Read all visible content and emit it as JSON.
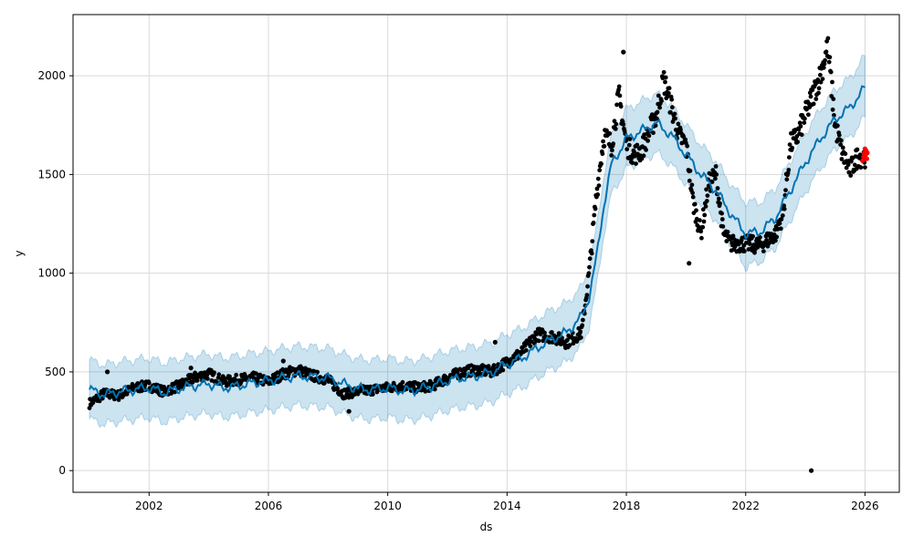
{
  "chart_data": {
    "type": "scatter",
    "title": "",
    "xlabel": "ds",
    "ylabel": "y",
    "xlim": [
      1999.45,
      2027.15
    ],
    "ylim": [
      -110,
      2310
    ],
    "grid": true,
    "x_ticks": [
      {
        "value": 2002,
        "label": "2002"
      },
      {
        "value": 2006,
        "label": "2006"
      },
      {
        "value": 2010,
        "label": "2010"
      },
      {
        "value": 2014,
        "label": "2014"
      },
      {
        "value": 2018,
        "label": "2018"
      },
      {
        "value": 2022,
        "label": "2022"
      },
      {
        "value": 2026,
        "label": "2026"
      }
    ],
    "y_ticks": [
      {
        "value": 0,
        "label": "0"
      },
      {
        "value": 500,
        "label": "500"
      },
      {
        "value": 1000,
        "label": "1000"
      },
      {
        "value": 1500,
        "label": "1500"
      },
      {
        "value": 2000,
        "label": "2000"
      }
    ],
    "colors": {
      "observed": "#000000",
      "forecast": "#0072b2",
      "interval_fill": "#0072b2",
      "holdout": "#ff0000",
      "grid": "#d9d9d9"
    },
    "forecast": {
      "x": [
        2000.0,
        2000.5,
        2001.0,
        2001.5,
        2002.0,
        2002.5,
        2003.0,
        2003.5,
        2004.0,
        2004.5,
        2005.0,
        2005.5,
        2006.0,
        2006.5,
        2007.0,
        2007.5,
        2008.0,
        2008.5,
        2009.0,
        2009.5,
        2010.0,
        2010.5,
        2011.0,
        2011.5,
        2012.0,
        2012.5,
        2013.0,
        2013.5,
        2014.0,
        2014.5,
        2015.0,
        2015.5,
        2016.0,
        2016.5,
        2016.75,
        2017.0,
        2017.25,
        2017.5,
        2018.0,
        2018.5,
        2019.0,
        2019.5,
        2020.0,
        2020.5,
        2021.0,
        2021.5,
        2022.0,
        2022.5,
        2023.0,
        2023.5,
        2024.0,
        2024.5,
        2025.0,
        2025.5,
        2026.0
      ],
      "yhat": [
        410,
        385,
        400,
        410,
        420,
        395,
        415,
        430,
        440,
        420,
        430,
        445,
        455,
        470,
        480,
        475,
        470,
        440,
        415,
        410,
        420,
        405,
        410,
        430,
        455,
        470,
        480,
        500,
        540,
        570,
        620,
        665,
        700,
        780,
        880,
        1080,
        1350,
        1550,
        1680,
        1720,
        1760,
        1700,
        1600,
        1500,
        1420,
        1300,
        1200,
        1210,
        1280,
        1420,
        1560,
        1680,
        1780,
        1840,
        1940
      ],
      "lower": [
        260,
        235,
        250,
        260,
        270,
        245,
        265,
        280,
        290,
        270,
        280,
        295,
        305,
        320,
        330,
        325,
        320,
        290,
        265,
        260,
        270,
        255,
        260,
        280,
        305,
        320,
        330,
        350,
        390,
        420,
        470,
        515,
        550,
        630,
        730,
        930,
        1200,
        1400,
        1530,
        1570,
        1610,
        1550,
        1450,
        1350,
        1270,
        1150,
        1030,
        1060,
        1130,
        1270,
        1410,
        1530,
        1630,
        1690,
        1790
      ],
      "upper": [
        560,
        535,
        550,
        560,
        570,
        545,
        565,
        580,
        590,
        570,
        580,
        595,
        605,
        620,
        630,
        625,
        620,
        590,
        565,
        560,
        570,
        555,
        560,
        580,
        605,
        620,
        630,
        650,
        690,
        720,
        770,
        815,
        850,
        930,
        1030,
        1230,
        1500,
        1700,
        1830,
        1870,
        1910,
        1850,
        1750,
        1650,
        1570,
        1450,
        1360,
        1360,
        1430,
        1570,
        1710,
        1830,
        1930,
        1990,
        2100
      ]
    },
    "observed_trend": {
      "x": [
        2000.0,
        2000.5,
        2001.0,
        2001.5,
        2002.0,
        2002.5,
        2003.0,
        2003.5,
        2004.0,
        2004.5,
        2005.0,
        2005.5,
        2006.0,
        2006.5,
        2007.0,
        2007.5,
        2008.0,
        2008.5,
        2009.0,
        2009.5,
        2010.0,
        2010.5,
        2011.0,
        2011.5,
        2012.0,
        2012.5,
        2013.0,
        2013.5,
        2014.0,
        2014.5,
        2015.0,
        2015.5,
        2016.0,
        2016.5,
        2016.75,
        2017.0,
        2017.25,
        2017.5,
        2017.75,
        2018.0,
        2018.25,
        2018.5,
        2019.0,
        2019.25,
        2019.5,
        2019.75,
        2020.0,
        2020.25,
        2020.5,
        2020.75,
        2021.0,
        2021.25,
        2021.5,
        2021.75,
        2022.0,
        2022.5,
        2023.0,
        2023.25,
        2023.5,
        2023.75,
        2024.0,
        2024.25,
        2024.5,
        2024.75,
        2025.0,
        2025.25,
        2025.5,
        2025.75,
        2026.0
      ],
      "y": [
        340,
        390,
        380,
        420,
        430,
        400,
        430,
        470,
        490,
        450,
        460,
        470,
        450,
        490,
        510,
        480,
        460,
        390,
        400,
        410,
        420,
        430,
        420,
        430,
        470,
        500,
        510,
        500,
        550,
        600,
        690,
        680,
        650,
        700,
        1000,
        1400,
        1700,
        1650,
        1900,
        1650,
        1600,
        1620,
        1800,
        1980,
        1850,
        1700,
        1650,
        1350,
        1200,
        1450,
        1500,
        1200,
        1150,
        1150,
        1150,
        1140,
        1200,
        1300,
        1650,
        1700,
        1800,
        1900,
        2000,
        2150,
        1750,
        1600,
        1520,
        1590,
        1590
      ]
    },
    "observed_outliers": {
      "x": [
        2000.6,
        2003.4,
        2006.5,
        2008.7,
        2013.6,
        2017.9,
        2020.1,
        2024.2
      ],
      "y": [
        500,
        520,
        555,
        300,
        650,
        2120,
        1050,
        0
      ]
    },
    "holdout": {
      "x": [
        2025.92,
        2025.95,
        2025.98,
        2026.0,
        2026.02,
        2026.04,
        2026.06,
        2026.08
      ],
      "y": [
        1570,
        1590,
        1610,
        1630,
        1600,
        1620,
        1580,
        1610
      ]
    }
  }
}
